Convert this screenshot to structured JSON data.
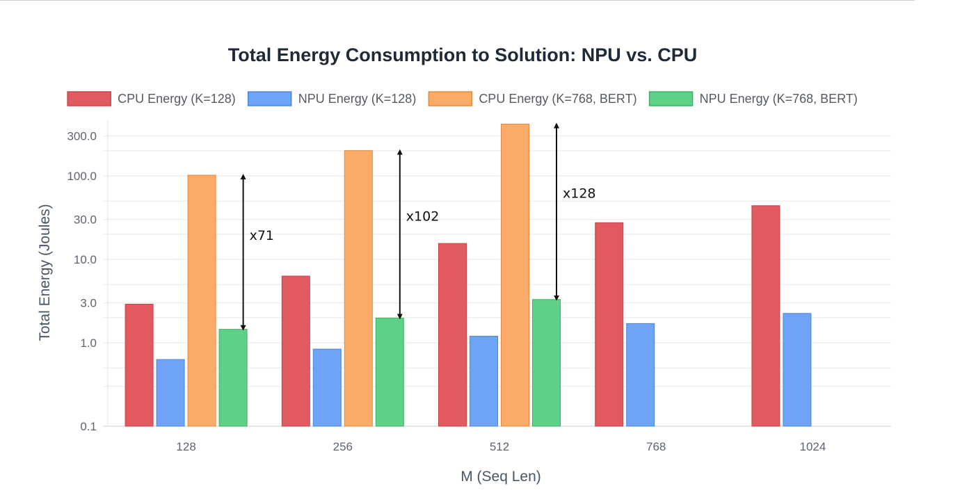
{
  "chart_data": {
    "type": "bar",
    "title": "Total Energy Consumption to Solution: NPU vs. CPU",
    "xlabel": "M (Seq Len)",
    "ylabel": "Total Energy (Joules)",
    "yscale": "log",
    "ylim": [
      0.1,
      420
    ],
    "yticks": [
      "0.1",
      "1.0",
      "3.0",
      "10.0",
      "30.0",
      "100.0",
      "300.0"
    ],
    "grid": true,
    "legend_position": "top",
    "categories": [
      "128",
      "256",
      "512",
      "768",
      "1024"
    ],
    "series": [
      {
        "name": "CPU Energy (K=128)",
        "color": "#e05a60",
        "border": "#c9434a",
        "values": [
          2.9,
          6.3,
          15.5,
          27.5,
          44
        ]
      },
      {
        "name": "NPU Energy (K=128)",
        "color": "#6ea3f5",
        "border": "#4d86dd",
        "values": [
          0.63,
          0.84,
          1.2,
          1.7,
          2.25
        ]
      },
      {
        "name": "CPU Energy (K=768, BERT)",
        "color": "#fbab68",
        "border": "#e5893f",
        "values": [
          102,
          201,
          418,
          null,
          null
        ]
      },
      {
        "name": "NPU Energy (K=768, BERT)",
        "color": "#5fd186",
        "border": "#36b564",
        "values": [
          1.45,
          1.98,
          3.3,
          null,
          null
        ]
      }
    ],
    "annotations": [
      {
        "category": "128",
        "text": "x71",
        "from": 1.45,
        "to": 102
      },
      {
        "category": "256",
        "text": "x102",
        "from": 1.98,
        "to": 201
      },
      {
        "category": "512",
        "text": "x128",
        "from": 3.3,
        "to": 418
      }
    ]
  }
}
